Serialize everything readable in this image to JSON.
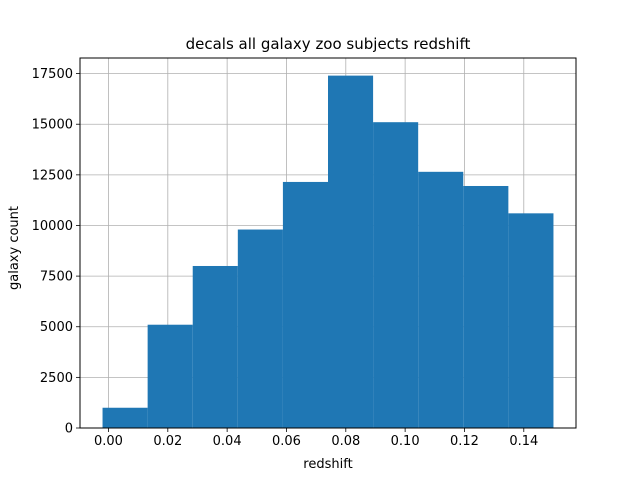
{
  "chart_data": {
    "type": "bar",
    "title": "decals all galaxy zoo subjects redshift",
    "xlabel": "redshift",
    "ylabel": "galaxy count",
    "bins": [
      {
        "x0": -0.002,
        "x1": 0.0132,
        "count": 1000
      },
      {
        "x0": 0.0132,
        "x1": 0.0284,
        "count": 5100
      },
      {
        "x0": 0.0284,
        "x1": 0.0436,
        "count": 8000
      },
      {
        "x0": 0.0436,
        "x1": 0.0588,
        "count": 9800
      },
      {
        "x0": 0.0588,
        "x1": 0.074,
        "count": 12150
      },
      {
        "x0": 0.074,
        "x1": 0.0892,
        "count": 17400
      },
      {
        "x0": 0.0892,
        "x1": 0.1044,
        "count": 15100
      },
      {
        "x0": 0.1044,
        "x1": 0.1196,
        "count": 12650
      },
      {
        "x0": 0.1196,
        "x1": 0.1348,
        "count": 11950
      },
      {
        "x0": 0.1348,
        "x1": 0.15,
        "count": 10600
      }
    ],
    "xlim": [
      -0.0096,
      0.1576
    ],
    "ylim": [
      0,
      18270
    ],
    "xticks": [
      "0.00",
      "0.02",
      "0.04",
      "0.06",
      "0.08",
      "0.10",
      "0.12",
      "0.14"
    ],
    "yticks": [
      "0",
      "2500",
      "5000",
      "7500",
      "10000",
      "12500",
      "15000",
      "17500"
    ],
    "grid": true,
    "bar_color": "#1f77b4",
    "grid_color": "#b0b0b0"
  }
}
